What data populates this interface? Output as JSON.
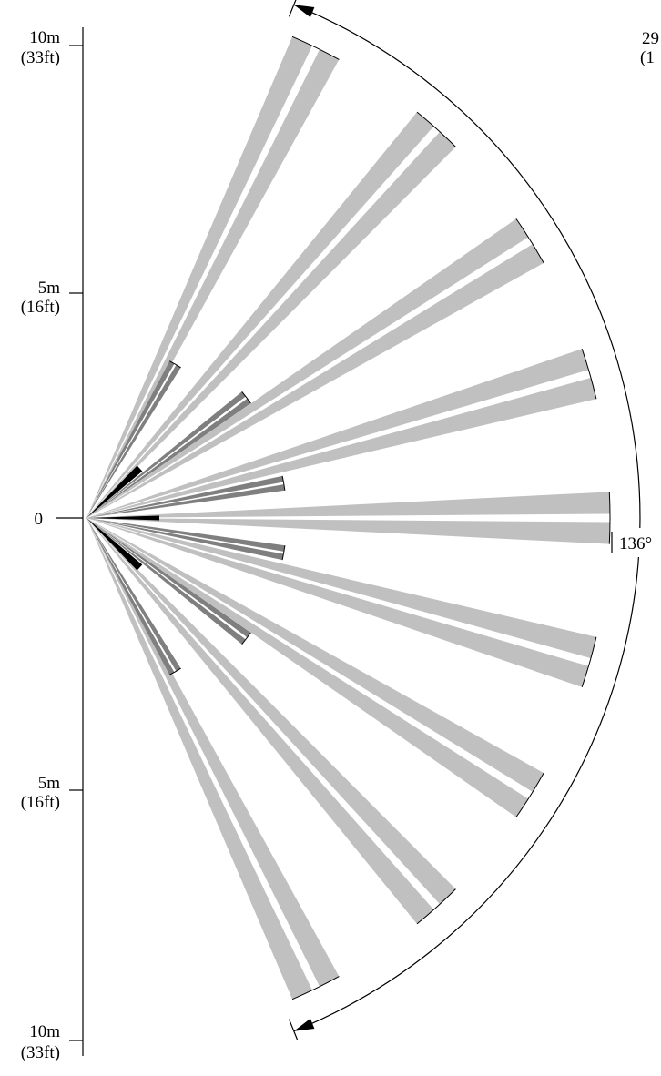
{
  "scale": {
    "top": {
      "primary": "10m",
      "secondary": "(33ft)"
    },
    "upper_mid": {
      "primary": "5m",
      "secondary": "(16ft)"
    },
    "origin": "0",
    "lower_mid": {
      "primary": "5m",
      "secondary": "(16ft)"
    },
    "bottom": {
      "primary": "10m",
      "secondary": "(33ft)"
    }
  },
  "coverage_angle": "136°",
  "corner_note": {
    "line1": "29",
    "line2": "(1"
  },
  "colors": {
    "long_beam": "#c0c0c0",
    "mid_beam": "#7f7f7f",
    "short_beam": "#000000",
    "line": "#000000",
    "background": "#ffffff"
  }
}
